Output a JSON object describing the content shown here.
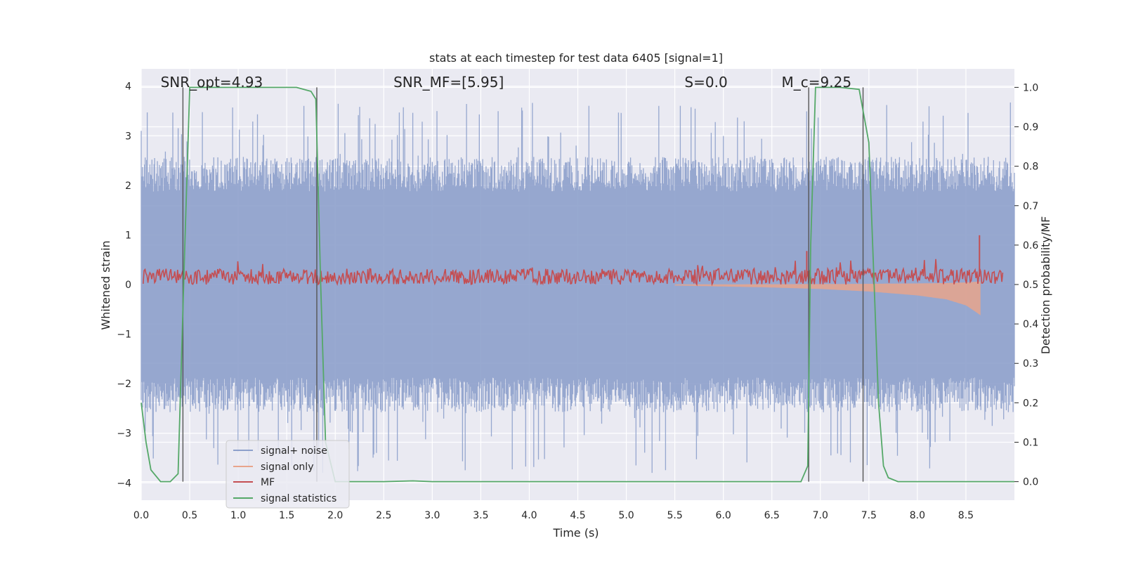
{
  "chart_data": {
    "type": "line",
    "title": "stats at each timestep for test data 6405 [signal=1]",
    "xlabel": "Time (s)",
    "ylabel_left": "Whitened strain",
    "ylabel_right": "Detection probability/MF",
    "xlim": [
      0.0,
      9.0
    ],
    "ylim_left": [
      -4.35,
      4.35
    ],
    "ylim_right": [
      -0.047,
      1.047
    ],
    "x_ticks": [
      0.0,
      0.5,
      1.0,
      1.5,
      2.0,
      2.5,
      3.0,
      3.5,
      4.0,
      4.5,
      5.0,
      5.5,
      6.0,
      6.5,
      7.0,
      7.5,
      8.0,
      8.5
    ],
    "x_tick_labels": [
      "0.0",
      "0.5",
      "1.0",
      "1.5",
      "2.0",
      "2.5",
      "3.0",
      "3.5",
      "4.0",
      "4.5",
      "5.0",
      "5.5",
      "6.0",
      "6.5",
      "7.0",
      "7.5",
      "8.0",
      "8.5"
    ],
    "y_ticks_left": [
      4,
      3,
      2,
      1,
      0,
      -1,
      -2,
      -3,
      -4
    ],
    "y_tick_labels_left": [
      "4",
      "3",
      "2",
      "1",
      "0",
      "−1",
      "−2",
      "−3",
      "−4"
    ],
    "y_ticks_right": [
      1.0,
      0.9,
      0.8,
      0.7,
      0.6,
      0.5,
      0.4,
      0.3,
      0.2,
      0.1,
      0.0
    ],
    "y_tick_labels_right": [
      "1.0",
      "0.9",
      "0.8",
      "0.7",
      "0.6",
      "0.5",
      "0.4",
      "0.3",
      "0.2",
      "0.1",
      "0.0"
    ],
    "annotations": [
      {
        "label": "SNR_opt=4.93",
        "x": 0.2
      },
      {
        "label": "SNR_MF=[5.95]",
        "x": 2.6
      },
      {
        "label": "S=0.0",
        "x": 5.6
      },
      {
        "label": "M_c=9.25",
        "x": 6.6
      }
    ],
    "vertical_lines": [
      0.43,
      1.81,
      6.88,
      7.44
    ],
    "series": [
      {
        "name": "signal+ noise",
        "axis": "left",
        "color": "#8da0cb",
        "style": "noise band",
        "typical_range": [
          -2.5,
          2.5
        ],
        "extreme_range": [
          -3.8,
          3.7
        ]
      },
      {
        "name": "signal only",
        "axis": "left",
        "color": "#e8a48c",
        "style": "chirp",
        "x": [
          5.5,
          6.0,
          6.5,
          7.0,
          7.5,
          8.0,
          8.3,
          8.5,
          8.6,
          8.65
        ],
        "envelope": [
          0.02,
          0.04,
          0.06,
          0.09,
          0.14,
          0.22,
          0.3,
          0.42,
          0.55,
          0.62
        ]
      },
      {
        "name": "MF",
        "axis": "right",
        "color": "#c44e52",
        "style": "noisy line",
        "baseline": 0.52,
        "spread": 0.02,
        "peaks": [
          {
            "x": 6.86,
            "y": 0.585
          },
          {
            "x": 8.64,
            "y": 0.625
          }
        ]
      },
      {
        "name": "signal statistics",
        "axis": "right",
        "color": "#55a868",
        "style": "line",
        "x": [
          0.0,
          0.05,
          0.1,
          0.2,
          0.3,
          0.38,
          0.45,
          0.5,
          0.6,
          0.8,
          1.0,
          1.2,
          1.4,
          1.6,
          1.75,
          1.8,
          1.85,
          1.9,
          2.0,
          2.5,
          2.8,
          3.0,
          4.0,
          5.0,
          6.0,
          6.8,
          6.87,
          6.9,
          6.95,
          7.0,
          7.2,
          7.4,
          7.5,
          7.6,
          7.65,
          7.7,
          7.8,
          8.0,
          9.0
        ],
        "y": [
          0.2,
          0.1,
          0.03,
          0.0,
          0.0,
          0.02,
          0.6,
          1.0,
          1.0,
          1.0,
          1.0,
          1.0,
          1.0,
          1.0,
          0.99,
          0.97,
          0.5,
          0.1,
          0.0,
          0.0,
          0.002,
          0.0,
          0.0,
          0.0,
          0.0,
          0.0,
          0.04,
          0.6,
          1.0,
          1.0,
          1.0,
          0.995,
          0.86,
          0.2,
          0.04,
          0.01,
          0.0,
          0.0,
          0.0
        ]
      }
    ],
    "legend": {
      "placement": "lower-left",
      "entries": [
        {
          "label": "signal+ noise",
          "color": "#8da0cb"
        },
        {
          "label": "signal only",
          "color": "#e8a48c"
        },
        {
          "label": "MF",
          "color": "#c44e52"
        },
        {
          "label": "signal statistics",
          "color": "#55a868"
        }
      ]
    }
  }
}
